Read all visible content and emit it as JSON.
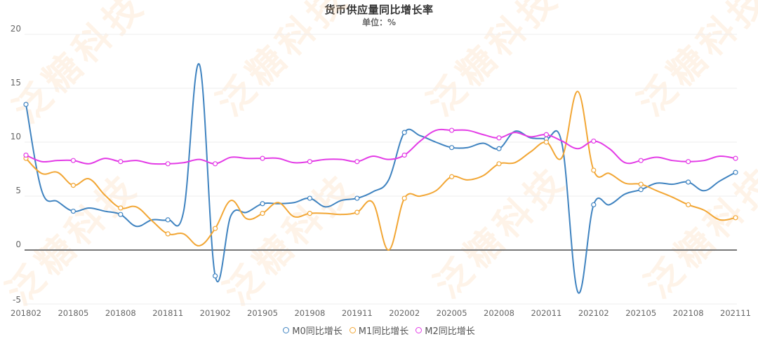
{
  "header": {
    "title": "货币供应量同比增长率",
    "subtitle": "单位：%"
  },
  "watermark": "泛糖科技",
  "legend": [
    {
      "label": "M0同比增长",
      "color": "#3f83c0"
    },
    {
      "label": "M1同比增长",
      "color": "#f2a634"
    },
    {
      "label": "M2同比增长",
      "color": "#e33be6"
    }
  ],
  "chart_data": {
    "type": "line",
    "title": "货币供应量同比增长率",
    "subtitle": "单位：%",
    "xlabel": "",
    "ylabel": "%",
    "ylim": [
      -5,
      20
    ],
    "yticks": [
      -5,
      0,
      5,
      10,
      15,
      20
    ],
    "grid": true,
    "legend_position": "bottom",
    "x_tick_labels": [
      "201802",
      "201805",
      "201808",
      "201811",
      "201902",
      "201905",
      "201908",
      "201911",
      "202002",
      "202005",
      "202008",
      "202011",
      "202102",
      "202105",
      "202108",
      "202111"
    ],
    "x": [
      "201802",
      "201803",
      "201804",
      "201805",
      "201806",
      "201807",
      "201808",
      "201809",
      "201810",
      "201811",
      "201812",
      "201901",
      "201902",
      "201903",
      "201904",
      "201905",
      "201906",
      "201907",
      "201908",
      "201909",
      "201910",
      "201911",
      "201912",
      "202001",
      "202002",
      "202003",
      "202004",
      "202005",
      "202006",
      "202007",
      "202008",
      "202009",
      "202010",
      "202011",
      "202012",
      "202101",
      "202102",
      "202103",
      "202104",
      "202105",
      "202106",
      "202107",
      "202108",
      "202109",
      "202110",
      "202111"
    ],
    "series": [
      {
        "name": "M0同比增长",
        "color": "#3f83c0",
        "values": [
          13.5,
          5.5,
          4.5,
          3.6,
          3.9,
          3.6,
          3.3,
          2.2,
          2.8,
          2.8,
          3.6,
          17.2,
          -2.4,
          3.2,
          3.5,
          4.3,
          4.3,
          4.4,
          4.8,
          4.0,
          4.6,
          4.8,
          5.4,
          6.5,
          10.9,
          10.6,
          10.0,
          9.5,
          9.5,
          9.9,
          9.4,
          11.0,
          10.4,
          10.3,
          9.8,
          -3.9,
          4.2,
          4.2,
          5.2,
          5.6,
          6.2,
          6.1,
          6.3,
          5.5,
          6.4,
          7.2
        ]
      },
      {
        "name": "M1同比增长",
        "color": "#f2a634",
        "values": [
          8.5,
          7.1,
          7.2,
          6.0,
          6.6,
          5.1,
          3.9,
          4.0,
          2.7,
          1.5,
          1.5,
          0.4,
          2.0,
          4.6,
          2.9,
          3.4,
          4.4,
          3.1,
          3.4,
          3.4,
          3.3,
          3.5,
          4.4,
          0.0,
          4.8,
          5.0,
          5.5,
          6.8,
          6.5,
          6.9,
          8.0,
          8.1,
          9.1,
          10.0,
          8.6,
          14.7,
          7.4,
          7.1,
          6.2,
          6.1,
          5.5,
          4.9,
          4.2,
          3.7,
          2.8,
          3.0
        ]
      },
      {
        "name": "M2同比增长",
        "color": "#e33be6",
        "values": [
          8.8,
          8.2,
          8.3,
          8.3,
          8.0,
          8.5,
          8.2,
          8.3,
          8.0,
          8.0,
          8.1,
          8.4,
          8.0,
          8.6,
          8.5,
          8.5,
          8.5,
          8.1,
          8.2,
          8.4,
          8.4,
          8.2,
          8.7,
          8.4,
          8.8,
          10.1,
          11.1,
          11.1,
          11.1,
          10.7,
          10.4,
          10.9,
          10.5,
          10.7,
          10.1,
          9.4,
          10.1,
          9.4,
          8.1,
          8.3,
          8.6,
          8.3,
          8.2,
          8.3,
          8.7,
          8.5
        ]
      }
    ]
  }
}
